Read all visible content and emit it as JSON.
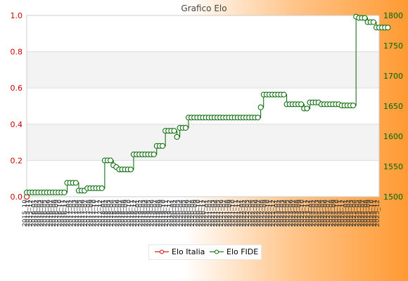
{
  "chart_data": {
    "type": "line",
    "title": "Grafico Elo",
    "left_axis": {
      "min": 0.0,
      "max": 1.0,
      "ticks": [
        "0.0",
        "0.2",
        "0.4",
        "0.6",
        "0.8",
        "1.0"
      ],
      "color": "#cc0000"
    },
    "right_axis": {
      "min": 1500,
      "max": 1800,
      "ticks": [
        "1500",
        "1550",
        "1600",
        "1650",
        "1700",
        "1750",
        "1800"
      ],
      "color": "#006600"
    },
    "x_tick_labels": [
      "2015_10",
      "2015_11",
      "2015_12",
      "2016_01",
      "2016_02",
      "2016_03",
      "2016_04",
      "2016_05",
      "2016_06",
      "2016_07",
      "2016_08",
      "2016_09",
      "2016_10",
      "2016_11",
      "2016_12",
      "2017_01",
      "2017_02",
      "2017_03",
      "2017_04",
      "2017_05",
      "2017_06",
      "2017_07",
      "2017_08",
      "2017_09",
      "2017_10",
      "2017_11",
      "2017_12",
      "2018_01",
      "2018_02",
      "2018_03",
      "2018_04",
      "2018_05",
      "2018_06",
      "2018_07",
      "2018_08",
      "2018_09",
      "2018_10",
      "2018_11",
      "2018_12",
      "2019_01",
      "2019_02",
      "2019_03",
      "2019_04",
      "2019_05",
      "2019_06",
      "2019_07",
      "2019_08",
      "2019_09",
      "2019_10",
      "2019_11",
      "2019_12",
      "2020_01",
      "2020_02",
      "2020_03",
      "2020_04",
      "2020_05",
      "2020_06",
      "2020_07",
      "2020_08",
      "2020_09",
      "2020_10",
      "2020_11",
      "2020_12",
      "2021_01",
      "2021_02",
      "2021_03",
      "2021_04",
      "2021_05",
      "2021_06",
      "2021_07",
      "2021_08",
      "2021_09",
      "2021_10",
      "2021_11",
      "2021_12",
      "2022_01",
      "2022_02",
      "2022_03",
      "2022_04",
      "2022_05",
      "2022_06",
      "2022_07",
      "2022_08",
      "2022_09",
      "2022_10",
      "2022_11",
      "2022_12",
      "2023_01",
      "2023_02",
      "2023_03",
      "2023_04",
      "2023_05",
      "2023_06",
      "2023_07",
      "2023_08",
      "2023_09",
      "2023_10",
      "2023_11",
      "2023_12",
      "2024_01",
      "2024_02",
      "2024_03",
      "2024_04",
      "2024_05",
      "2024_06",
      "2024_07",
      "2024_08",
      "2024_09",
      "2024_10",
      "2024_11",
      "2024_12",
      "2025_01",
      "2025_02",
      "2025_03",
      "2025_04",
      "2025_05",
      "2025_06",
      "2025_07",
      "2025_08",
      "2025_09",
      "2025_10",
      "2025_11",
      "2025_12"
    ],
    "series": [
      {
        "name": "Elo Italia",
        "axis": "left",
        "color": "#cc0000",
        "values": [
          0,
          null,
          null,
          null,
          null,
          null,
          null,
          null,
          null,
          null,
          null,
          null,
          null,
          null,
          null,
          null,
          null,
          null,
          null,
          null,
          null,
          null,
          null,
          null,
          null,
          null,
          null,
          null,
          null,
          null,
          null,
          null,
          null,
          null,
          null,
          null,
          null,
          null,
          null,
          null,
          null,
          null,
          null,
          null,
          null,
          null,
          null,
          null,
          null,
          null,
          null,
          null,
          null,
          null,
          null,
          null,
          null,
          null,
          null,
          null,
          null,
          null,
          null,
          null,
          null,
          null,
          null,
          null,
          null,
          null,
          null,
          null,
          null,
          null,
          null,
          null,
          null,
          null,
          null,
          null,
          null,
          null,
          null,
          null,
          null,
          null,
          null,
          null,
          null,
          null,
          null,
          null,
          null,
          null,
          null,
          null,
          null,
          null,
          null,
          null,
          null,
          null,
          null,
          null,
          null,
          null,
          null,
          null,
          null,
          null,
          null,
          null,
          null,
          null,
          null,
          null,
          null,
          null,
          null,
          null,
          null,
          null,
          null,
          null,
          null,
          null
        ]
      },
      {
        "name": "Elo FIDE",
        "axis": "right",
        "color": "#006600",
        "values": [
          1507,
          1507,
          1507,
          1507,
          1507,
          1507,
          1507,
          1507,
          1507,
          1507,
          1507,
          1507,
          1507,
          1507,
          1523,
          1523,
          1523,
          1523,
          1510,
          1510,
          1510,
          1514,
          1514,
          1514,
          1514,
          1514,
          1514,
          1560,
          1560,
          1560,
          1552,
          1549,
          1545,
          1545,
          1545,
          1545,
          1545,
          1570,
          1570,
          1570,
          1570,
          1570,
          1570,
          1570,
          1570,
          1584,
          1584,
          1584,
          1609,
          1609,
          1609,
          1609,
          1599,
          1614,
          1614,
          1614,
          1631,
          1631,
          1631,
          1631,
          1631,
          1631,
          1631,
          1631,
          1631,
          1631,
          1631,
          1631,
          1631,
          1631,
          1631,
          1631,
          1631,
          1631,
          1631,
          1631,
          1631,
          1631,
          1631,
          1631,
          1631,
          1648,
          1669,
          1669,
          1669,
          1669,
          1669,
          1669,
          1669,
          1669,
          1653,
          1653,
          1653,
          1653,
          1653,
          1653,
          1646,
          1646,
          1656,
          1656,
          1656,
          1656,
          1653,
          1653,
          1653,
          1653,
          1653,
          1653,
          1653,
          1651,
          1651,
          1651,
          1651,
          1651,
          1798,
          1796,
          1796,
          1796,
          1789,
          1789,
          1789,
          1780,
          1780,
          1780,
          1780,
          1780
        ]
      }
    ],
    "grid": true,
    "legend": "bottom"
  }
}
